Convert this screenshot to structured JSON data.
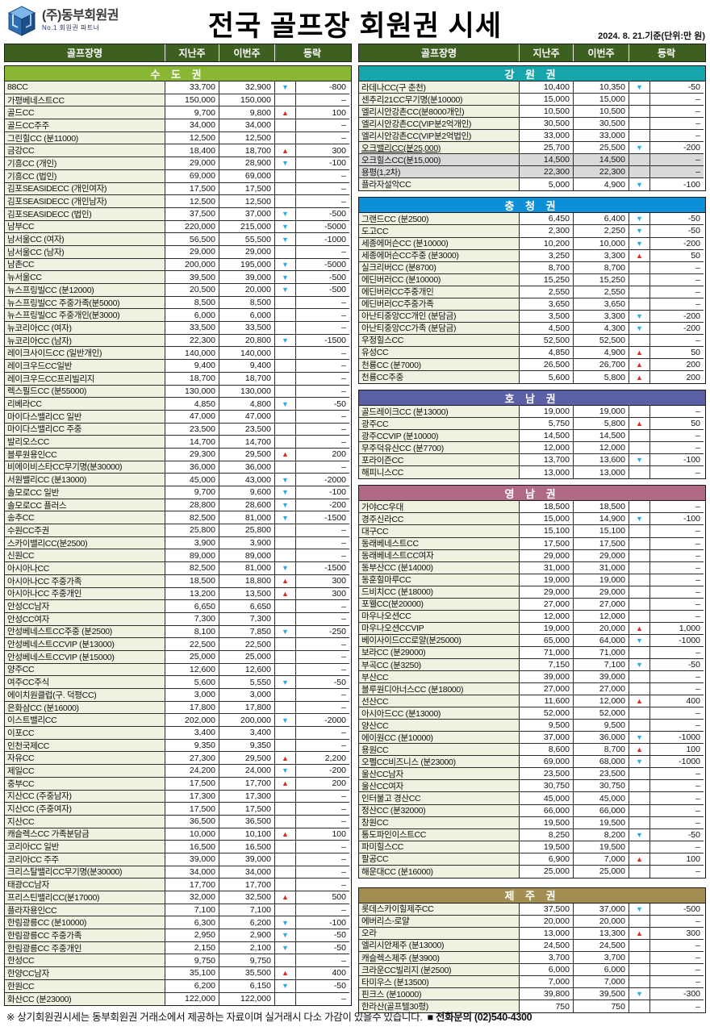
{
  "header": {
    "logo": {
      "company": "(주)동부회원권",
      "tagline": "No.1 회원권 파트너"
    },
    "title": "전국 골프장 회원권 시세",
    "date_note": "2024. 8. 21.기준(단위:만 원)"
  },
  "table": {
    "columns": [
      "골프장명",
      "지난주",
      "이번주",
      "등락"
    ],
    "left_sections": [
      {
        "label": "수 도 권",
        "color": "#8ab733",
        "rows": [
          [
            "88CC",
            "33,700",
            "32,900",
            "down",
            "-800"
          ],
          [
            "가평베네스트CC",
            "150,000",
            "150,000",
            "",
            "–"
          ],
          [
            "골드CC",
            "9,700",
            "9,800",
            "up",
            "100"
          ],
          [
            "골드CC주주",
            "34,000",
            "34,000",
            "",
            "–"
          ],
          [
            "그린힐CC (분11000)",
            "12,500",
            "12,500",
            "",
            "–"
          ],
          [
            "금강CC",
            "18,400",
            "18,700",
            "up",
            "300"
          ],
          [
            "기흥CC (개인)",
            "29,000",
            "28,900",
            "down",
            "-100"
          ],
          [
            "기흥CC (법인)",
            "69,000",
            "69,000",
            "",
            "–"
          ],
          [
            "김포SEASIDECC (개인여자)",
            "17,500",
            "17,500",
            "",
            "–"
          ],
          [
            "김포SEASIDECC (개인남자)",
            "12,500",
            "12,500",
            "",
            "–"
          ],
          [
            "김포SEASIDECC (법인)",
            "37,500",
            "37,000",
            "down",
            "-500"
          ],
          [
            "남부CC",
            "220,000",
            "215,000",
            "down",
            "-5000"
          ],
          [
            "남서울CC (여자)",
            "56,500",
            "55,500",
            "down",
            "-1000"
          ],
          [
            "남서울CC (남자)",
            "29,000",
            "29,000",
            "",
            "–"
          ],
          [
            "남촌CC",
            "200,000",
            "195,000",
            "down",
            "-5000"
          ],
          [
            "뉴서울CC",
            "39,500",
            "39,000",
            "down",
            "-500"
          ],
          [
            "뉴스프링빌CC (분12000)",
            "20,500",
            "20,000",
            "down",
            "-500"
          ],
          [
            "뉴스프링빌CC 주중가족(분5000)",
            "8,500",
            "8,500",
            "",
            "–"
          ],
          [
            "뉴스프링빌CC 주중개인(분3000)",
            "6,000",
            "6,000",
            "",
            "–"
          ],
          [
            "뉴코리아CC (여자)",
            "33,500",
            "33,500",
            "",
            "–"
          ],
          [
            "뉴코리아CC (남자)",
            "22,300",
            "20,800",
            "down",
            "-1500"
          ],
          [
            "레이크사이드CC (일반개인)",
            "140,000",
            "140,000",
            "",
            "–"
          ],
          [
            "레이크우드CC일반",
            "9,400",
            "9,400",
            "",
            "–"
          ],
          [
            "레이크우드CC프리빌리지",
            "18,700",
            "18,700",
            "",
            "–"
          ],
          [
            "렉스필드CC (분55000)",
            "130,000",
            "130,000",
            "",
            "–"
          ],
          [
            "리베라CC",
            "4,850",
            "4,800",
            "down",
            "-50"
          ],
          [
            "마이다스밸리CC 일반",
            "47,000",
            "47,000",
            "",
            "–"
          ],
          [
            "마이다스밸리CC 주중",
            "23,500",
            "23,500",
            "",
            "–"
          ],
          [
            "발리오스CC",
            "14,700",
            "14,700",
            "",
            "–"
          ],
          [
            "블루원용인CC",
            "29,300",
            "29,500",
            "up",
            "200"
          ],
          [
            "비에이비스타CC무기명(분30000)",
            "36,000",
            "36,000",
            "",
            "–"
          ],
          [
            "서원밸리CC (분13000)",
            "45,000",
            "43,000",
            "down",
            "-2000"
          ],
          [
            "솔모로CC 일반",
            "9,700",
            "9,600",
            "down",
            "-100"
          ],
          [
            "솔모로CC 플러스",
            "28,800",
            "28,600",
            "down",
            "-200"
          ],
          [
            "송추CC",
            "82,500",
            "81,000",
            "down",
            "-1500"
          ],
          [
            "수원CC주권",
            "25,800",
            "25,800",
            "",
            "–"
          ],
          [
            "스카이밸리CC(분2500)",
            "3,900",
            "3,900",
            "",
            "–"
          ],
          [
            "신원CC",
            "89,000",
            "89,000",
            "",
            "–"
          ],
          [
            "아시아나CC",
            "82,500",
            "81,000",
            "down",
            "-1500"
          ],
          [
            "아시아나CC 주중가족",
            "18,500",
            "18,800",
            "up",
            "300"
          ],
          [
            "아시아나CC 주중개인",
            "13,200",
            "13,500",
            "up",
            "300"
          ],
          [
            "안성CC남자",
            "6,650",
            "6,650",
            "",
            "–"
          ],
          [
            "안성CC여자",
            "7,300",
            "7,300",
            "",
            "–"
          ],
          [
            "안성베네스트CC주중 (분2500)",
            "8,100",
            "7,850",
            "down",
            "-250"
          ],
          [
            "안성베네스트CCVIP (분13000)",
            "22,500",
            "22,500",
            "",
            "–"
          ],
          [
            "안성베네스트CCVIP (분15000)",
            "25,000",
            "25,000",
            "",
            "–"
          ],
          [
            "양주CC",
            "12,600",
            "12,600",
            "",
            "–"
          ],
          [
            "여주CC주식",
            "5,600",
            "5,550",
            "down",
            "-50"
          ],
          [
            "에이치원클럽(구. 덕평CC)",
            "3,000",
            "3,000",
            "",
            "–"
          ],
          [
            "은화삼CC (분16000)",
            "17,800",
            "17,800",
            "",
            "–"
          ],
          [
            "이스트밸리CC",
            "202,000",
            "200,000",
            "down",
            "-2000"
          ],
          [
            "이포CC",
            "3,400",
            "3,400",
            "",
            "–"
          ],
          [
            "인천국제CC",
            "9,350",
            "9,350",
            "",
            "–"
          ],
          [
            "자유CC",
            "27,300",
            "29,500",
            "up",
            "2,200"
          ],
          [
            "제일CC",
            "24,200",
            "24,000",
            "down",
            "-200"
          ],
          [
            "중부CC",
            "17,500",
            "17,700",
            "up",
            "200"
          ],
          [
            "지산CC (주중남자)",
            "17,300",
            "17,300",
            "",
            "–"
          ],
          [
            "지산CC (주중여자)",
            "17,500",
            "17,500",
            "",
            "–"
          ],
          [
            "지산CC",
            "36,500",
            "36,500",
            "",
            "–"
          ],
          [
            "캐슬렉스CC 가족분담금",
            "10,000",
            "10,100",
            "up",
            "100"
          ],
          [
            "코리아CC 일반",
            "16,500",
            "16,500",
            "",
            "–"
          ],
          [
            "코리아CC 주주",
            "39,000",
            "39,000",
            "",
            "–"
          ],
          [
            "크리스탈밸리CC무기명(분30000)",
            "34,000",
            "34,000",
            "",
            "–"
          ],
          [
            "태광CC남자",
            "17,700",
            "17,700",
            "",
            "–"
          ],
          [
            "프리스틴밸리CC(분17000)",
            "32,000",
            "32,500",
            "up",
            "500"
          ],
          [
            "플라자용인CC",
            "7,100",
            "7,100",
            "",
            "–"
          ],
          [
            "한림광릉CC (분10000)",
            "6,300",
            "6,200",
            "down",
            "-100"
          ],
          [
            "한림광릉CC 주중가족",
            "2,950",
            "2,900",
            "down",
            "-50"
          ],
          [
            "한림광릉CC 주중개인",
            "2,150",
            "2,100",
            "down",
            "-50"
          ],
          [
            "한성CC",
            "9,750",
            "9,750",
            "",
            "–"
          ],
          [
            "한양CC남자",
            "35,100",
            "35,500",
            "up",
            "400"
          ],
          [
            "한원CC",
            "6,200",
            "6,150",
            "down",
            "-50"
          ],
          [
            "화산CC (분23000)",
            "122,000",
            "122,000",
            "",
            "–"
          ]
        ]
      }
    ],
    "right_sections": [
      {
        "label": "강 원 권",
        "color": "#16a5ab",
        "rows": [
          [
            "라데나CC(구 춘천)",
            "10,400",
            "10,350",
            "down",
            "-50"
          ],
          [
            "센추리21CC무기명(분10000)",
            "15,000",
            "15,000",
            "",
            "–"
          ],
          [
            "엘리시안강촌CC(분8000개인)",
            "10,500",
            "10,500",
            "",
            "–"
          ],
          [
            "엘리시안강촌CC(VIP분2억개인)",
            "30,500",
            "30,500",
            "",
            "–"
          ],
          [
            "엘리시안강촌CC(VIP분2억법인)",
            "33,000",
            "33,000",
            "",
            "–"
          ],
          [
            "오크밸리CC(분25,000)",
            "25,700",
            "25,500",
            "down",
            "-200",
            "u"
          ],
          [
            "오크힐스CC(분15,000)",
            "14,500",
            "14,500",
            "",
            "–",
            "g"
          ],
          [
            "용평(1,2차)",
            "22,300",
            "22,300",
            "",
            "–",
            "g"
          ],
          [
            "플라자설악CC",
            "5,000",
            "4,900",
            "down",
            "-100"
          ]
        ]
      },
      {
        "label": "충 청 권",
        "color": "#0c8fd6",
        "rows": [
          [
            "그랜드CC (분2500)",
            "6,450",
            "6,400",
            "down",
            "-50"
          ],
          [
            "도고CC",
            "2,300",
            "2,250",
            "down",
            "-50"
          ],
          [
            "세종에머슨CC (분10000)",
            "10,200",
            "10,000",
            "down",
            "-200"
          ],
          [
            "세종에머슨CC주중 (분3000)",
            "3,250",
            "3,300",
            "up",
            "50"
          ],
          [
            "실크리버CC (분8700)",
            "8,700",
            "8,700",
            "",
            "–"
          ],
          [
            "에딘버러CC (분10000)",
            "15,250",
            "15,250",
            "",
            "–"
          ],
          [
            "에딘버러CC주중개인",
            "2,550",
            "2,550",
            "",
            "–"
          ],
          [
            "에딘버러CC주중가족",
            "3,650",
            "3,650",
            "",
            "–"
          ],
          [
            "아난티중앙CC개인 (분담금)",
            "3,500",
            "3,300",
            "down",
            "-200"
          ],
          [
            "아난티중앙CC가족 (분담금)",
            "4,500",
            "4,300",
            "down",
            "-200"
          ],
          [
            "우정힐스CC",
            "52,500",
            "52,500",
            "",
            "–"
          ],
          [
            "유성CC",
            "4,850",
            "4,900",
            "up",
            "50"
          ],
          [
            "천룡CC (분7000)",
            "26,500",
            "26,700",
            "up",
            "200"
          ],
          [
            "천룡CC주중",
            "5,600",
            "5,800",
            "up",
            "200"
          ]
        ]
      },
      {
        "label": "호 남 권",
        "color": "#5a5fa6",
        "rows": [
          [
            "골드레이크CC (분13000)",
            "19,000",
            "19,000",
            "",
            "–"
          ],
          [
            "광주CC",
            "5,750",
            "5,800",
            "up",
            "50"
          ],
          [
            "광주CCVIP (분10000)",
            "14,500",
            "14,500",
            "",
            "–"
          ],
          [
            "무주덕유산CC (분7700)",
            "12,000",
            "12,000",
            "",
            "–"
          ],
          [
            "포라이즌CC",
            "13,700",
            "13,600",
            "down",
            "-100"
          ],
          [
            "해피니스CC",
            "13,000",
            "13,000",
            "",
            "–"
          ]
        ]
      },
      {
        "label": "영 남 권",
        "color": "#b06a85",
        "rows": [
          [
            "가야CC우대",
            "18,500",
            "18,500",
            "",
            "–"
          ],
          [
            "경주신라CC",
            "15,000",
            "14,900",
            "down",
            "-100"
          ],
          [
            "대구CC",
            "15,100",
            "15,100",
            "",
            "–"
          ],
          [
            "동래베네스트CC",
            "17,500",
            "17,500",
            "",
            "–"
          ],
          [
            "동래베네스트CC여자",
            "29,000",
            "29,000",
            "",
            "–"
          ],
          [
            "동부산CC (분14000)",
            "31,000",
            "31,000",
            "",
            "–"
          ],
          [
            "동훈힐마루CC",
            "19,000",
            "19,000",
            "",
            "–"
          ],
          [
            "드비치CC (분18000)",
            "29,000",
            "29,000",
            "",
            "–"
          ],
          [
            "포웰CC(분20000)",
            "27,000",
            "27,000",
            "",
            "–"
          ],
          [
            "마우나오션CC",
            "12,000",
            "12,000",
            "",
            "–"
          ],
          [
            "마우나오션CCVIP",
            "19,000",
            "20,000",
            "up",
            "1,000"
          ],
          [
            "베이사이드CC로얄(분25000)",
            "65,000",
            "64,000",
            "down",
            "-1000"
          ],
          [
            "보라CC (분29000)",
            "71,000",
            "71,000",
            "",
            "–"
          ],
          [
            "부곡CC (분3250)",
            "7,150",
            "7,100",
            "down",
            "-50"
          ],
          [
            "부산CC",
            "39,000",
            "39,000",
            "",
            "–"
          ],
          [
            "블루원디아너스CC (분18000)",
            "27,000",
            "27,000",
            "",
            "–"
          ],
          [
            "선산CC",
            "11,600",
            "12,000",
            "up",
            "400"
          ],
          [
            "아시아드CC (분13000)",
            "52,000",
            "52,000",
            "",
            "–"
          ],
          [
            "양산CC",
            "9,500",
            "9,500",
            "",
            "–"
          ],
          [
            "에이원CC (분10000)",
            "37,000",
            "36,000",
            "down",
            "-1000"
          ],
          [
            "용원CC",
            "8,600",
            "8,700",
            "up",
            "100"
          ],
          [
            "오펠CC비즈니스 (분23000)",
            "69,000",
            "68,000",
            "down",
            "-1000"
          ],
          [
            "울산CC남자",
            "23,500",
            "23,500",
            "",
            "–"
          ],
          [
            "울산CC여자",
            "30,750",
            "30,750",
            "",
            "–"
          ],
          [
            "인터불고 경산CC",
            "45,000",
            "45,000",
            "",
            "–"
          ],
          [
            "정산CC (분32000)",
            "66,000",
            "66,000",
            "",
            "–"
          ],
          [
            "창원CC",
            "19,500",
            "19,500",
            "",
            "–"
          ],
          [
            "통도파인이스트CC",
            "8,250",
            "8,200",
            "down",
            "-50"
          ],
          [
            "파미힐스CC",
            "19,500",
            "19,500",
            "",
            "–"
          ],
          [
            "팔공CC",
            "6,900",
            "7,000",
            "up",
            "100"
          ],
          [
            "해운대CC (분16000)",
            "25,000",
            "25,000",
            "",
            "–"
          ]
        ]
      },
      {
        "label": "제 주 권",
        "color": "#a28d52",
        "rows": [
          [
            "롯데스카이힐제주CC",
            "37,500",
            "37,000",
            "down",
            "-500"
          ],
          [
            "에버리스-로얄",
            "20,000",
            "20,000",
            "",
            "–"
          ],
          [
            "오라",
            "13,000",
            "13,300",
            "up",
            "300"
          ],
          [
            "엘리시안제주 (분13000)",
            "24,500",
            "24,500",
            "",
            "–"
          ],
          [
            "캐슬렉스제주 (분3900)",
            "3,700",
            "3,700",
            "",
            "–"
          ],
          [
            "크라운CC빌리지 (분2500)",
            "6,000",
            "6,000",
            "",
            "–"
          ],
          [
            "타미우스 (분13500)",
            "7,000",
            "7,000",
            "",
            "–"
          ],
          [
            "핀크스 (분10000)",
            "39,800",
            "39,500",
            "down",
            "-300"
          ],
          [
            "한라산(골프텔30평)",
            "750",
            "750",
            "",
            "–"
          ]
        ]
      }
    ]
  },
  "icons": {
    "up_arrow": "▲",
    "down_arrow": "▼"
  },
  "colors": {
    "column_header_bg": "#3d5f1f",
    "name_cell_bg": "#eef2e1",
    "gray_row_bg": "#d9d9d9",
    "up": "#e02722",
    "down": "#2babe2"
  },
  "footer": {
    "note": "※ 상기회원권시세는 동부회원권 거래소에서 제공하는 자료이며 실거래시 다소 가감이 있을수 있습니다.",
    "phone": "■ 전화문의 (02)540-4300"
  }
}
